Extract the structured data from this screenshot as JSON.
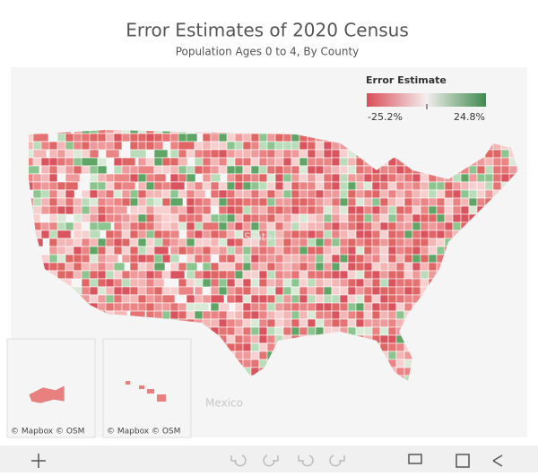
{
  "header": {
    "title": "Error Estimates of 2020 Census",
    "subtitle": "Population Ages 0 to 4, By County"
  },
  "legend": {
    "title": "Error Estimate",
    "min_label": "-25.2%",
    "max_label": "24.8%"
  },
  "map": {
    "country_label": "Mexico",
    "state_label": "State"
  },
  "insets": [
    {
      "attribution": "© Mapbox  © OSM"
    },
    {
      "attribution": "© Mapbox  © OSM"
    }
  ]
}
